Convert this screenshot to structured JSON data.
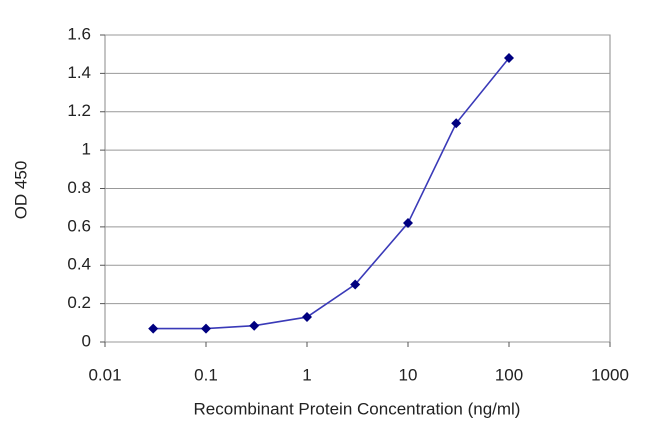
{
  "chart_data": {
    "type": "line",
    "x_label": "Recombinant Protein Concentration (ng/ml)",
    "y_label": "OD 450",
    "x": [
      0.03,
      0.1,
      0.3,
      1,
      3,
      10,
      30,
      100
    ],
    "values": [
      0.07,
      0.07,
      0.085,
      0.13,
      0.3,
      0.62,
      1.14,
      1.48
    ],
    "color": "#3a3ab8",
    "marker_color": "#000080",
    "x_log": true,
    "xlim": [
      0.01,
      1000
    ],
    "xticks": [
      0.01,
      0.1,
      1,
      10,
      100,
      1000
    ],
    "ylim": [
      0,
      1.6
    ],
    "yticks": [
      0,
      0.2,
      0.4,
      0.6,
      0.8,
      1,
      1.2,
      1.4,
      1.6
    ],
    "grid": true
  }
}
